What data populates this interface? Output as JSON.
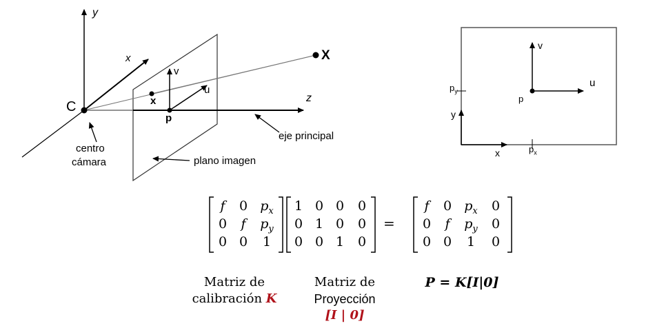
{
  "left_diagram": {
    "label_y": "y",
    "label_x": "x",
    "label_z": "z",
    "label_C": "C",
    "label_X": "X",
    "label_small_x": "x",
    "label_p": "p",
    "label_u": "u",
    "label_v": "v",
    "label_centro": "centro",
    "label_camara": "cámara",
    "label_eje": "eje principal",
    "label_plano": "plano imagen"
  },
  "right_diagram": {
    "label_v": "v",
    "label_u": "u",
    "label_p": "p",
    "label_py": "p",
    "label_py_sub": "y",
    "label_y": "y",
    "label_x": "x",
    "label_px": "p",
    "label_px_sub": "x"
  },
  "equation": {
    "K": [
      [
        "f",
        "0",
        "p",
        "x"
      ],
      [
        "0",
        "f",
        "p",
        "y"
      ],
      [
        "0",
        "0",
        "1",
        ""
      ]
    ],
    "I0": [
      [
        "1",
        "0",
        "0",
        "0"
      ],
      [
        "0",
        "1",
        "0",
        "0"
      ],
      [
        "0",
        "0",
        "1",
        "0"
      ]
    ],
    "equals": "=",
    "P": [
      [
        "f",
        "0",
        "p",
        "x",
        "0"
      ],
      [
        "0",
        "f",
        "p",
        "y",
        "0"
      ],
      [
        "0",
        "0",
        "1",
        "",
        "0"
      ]
    ]
  },
  "captions": {
    "calib_line1": "Matriz de",
    "calib_line2": "calibración",
    "calib_K": "K",
    "proj_line1": "Matriz de",
    "proj_line2": "Proyección",
    "proj_line3": "[I | 0]",
    "P_def": "P = K[I|0]"
  }
}
